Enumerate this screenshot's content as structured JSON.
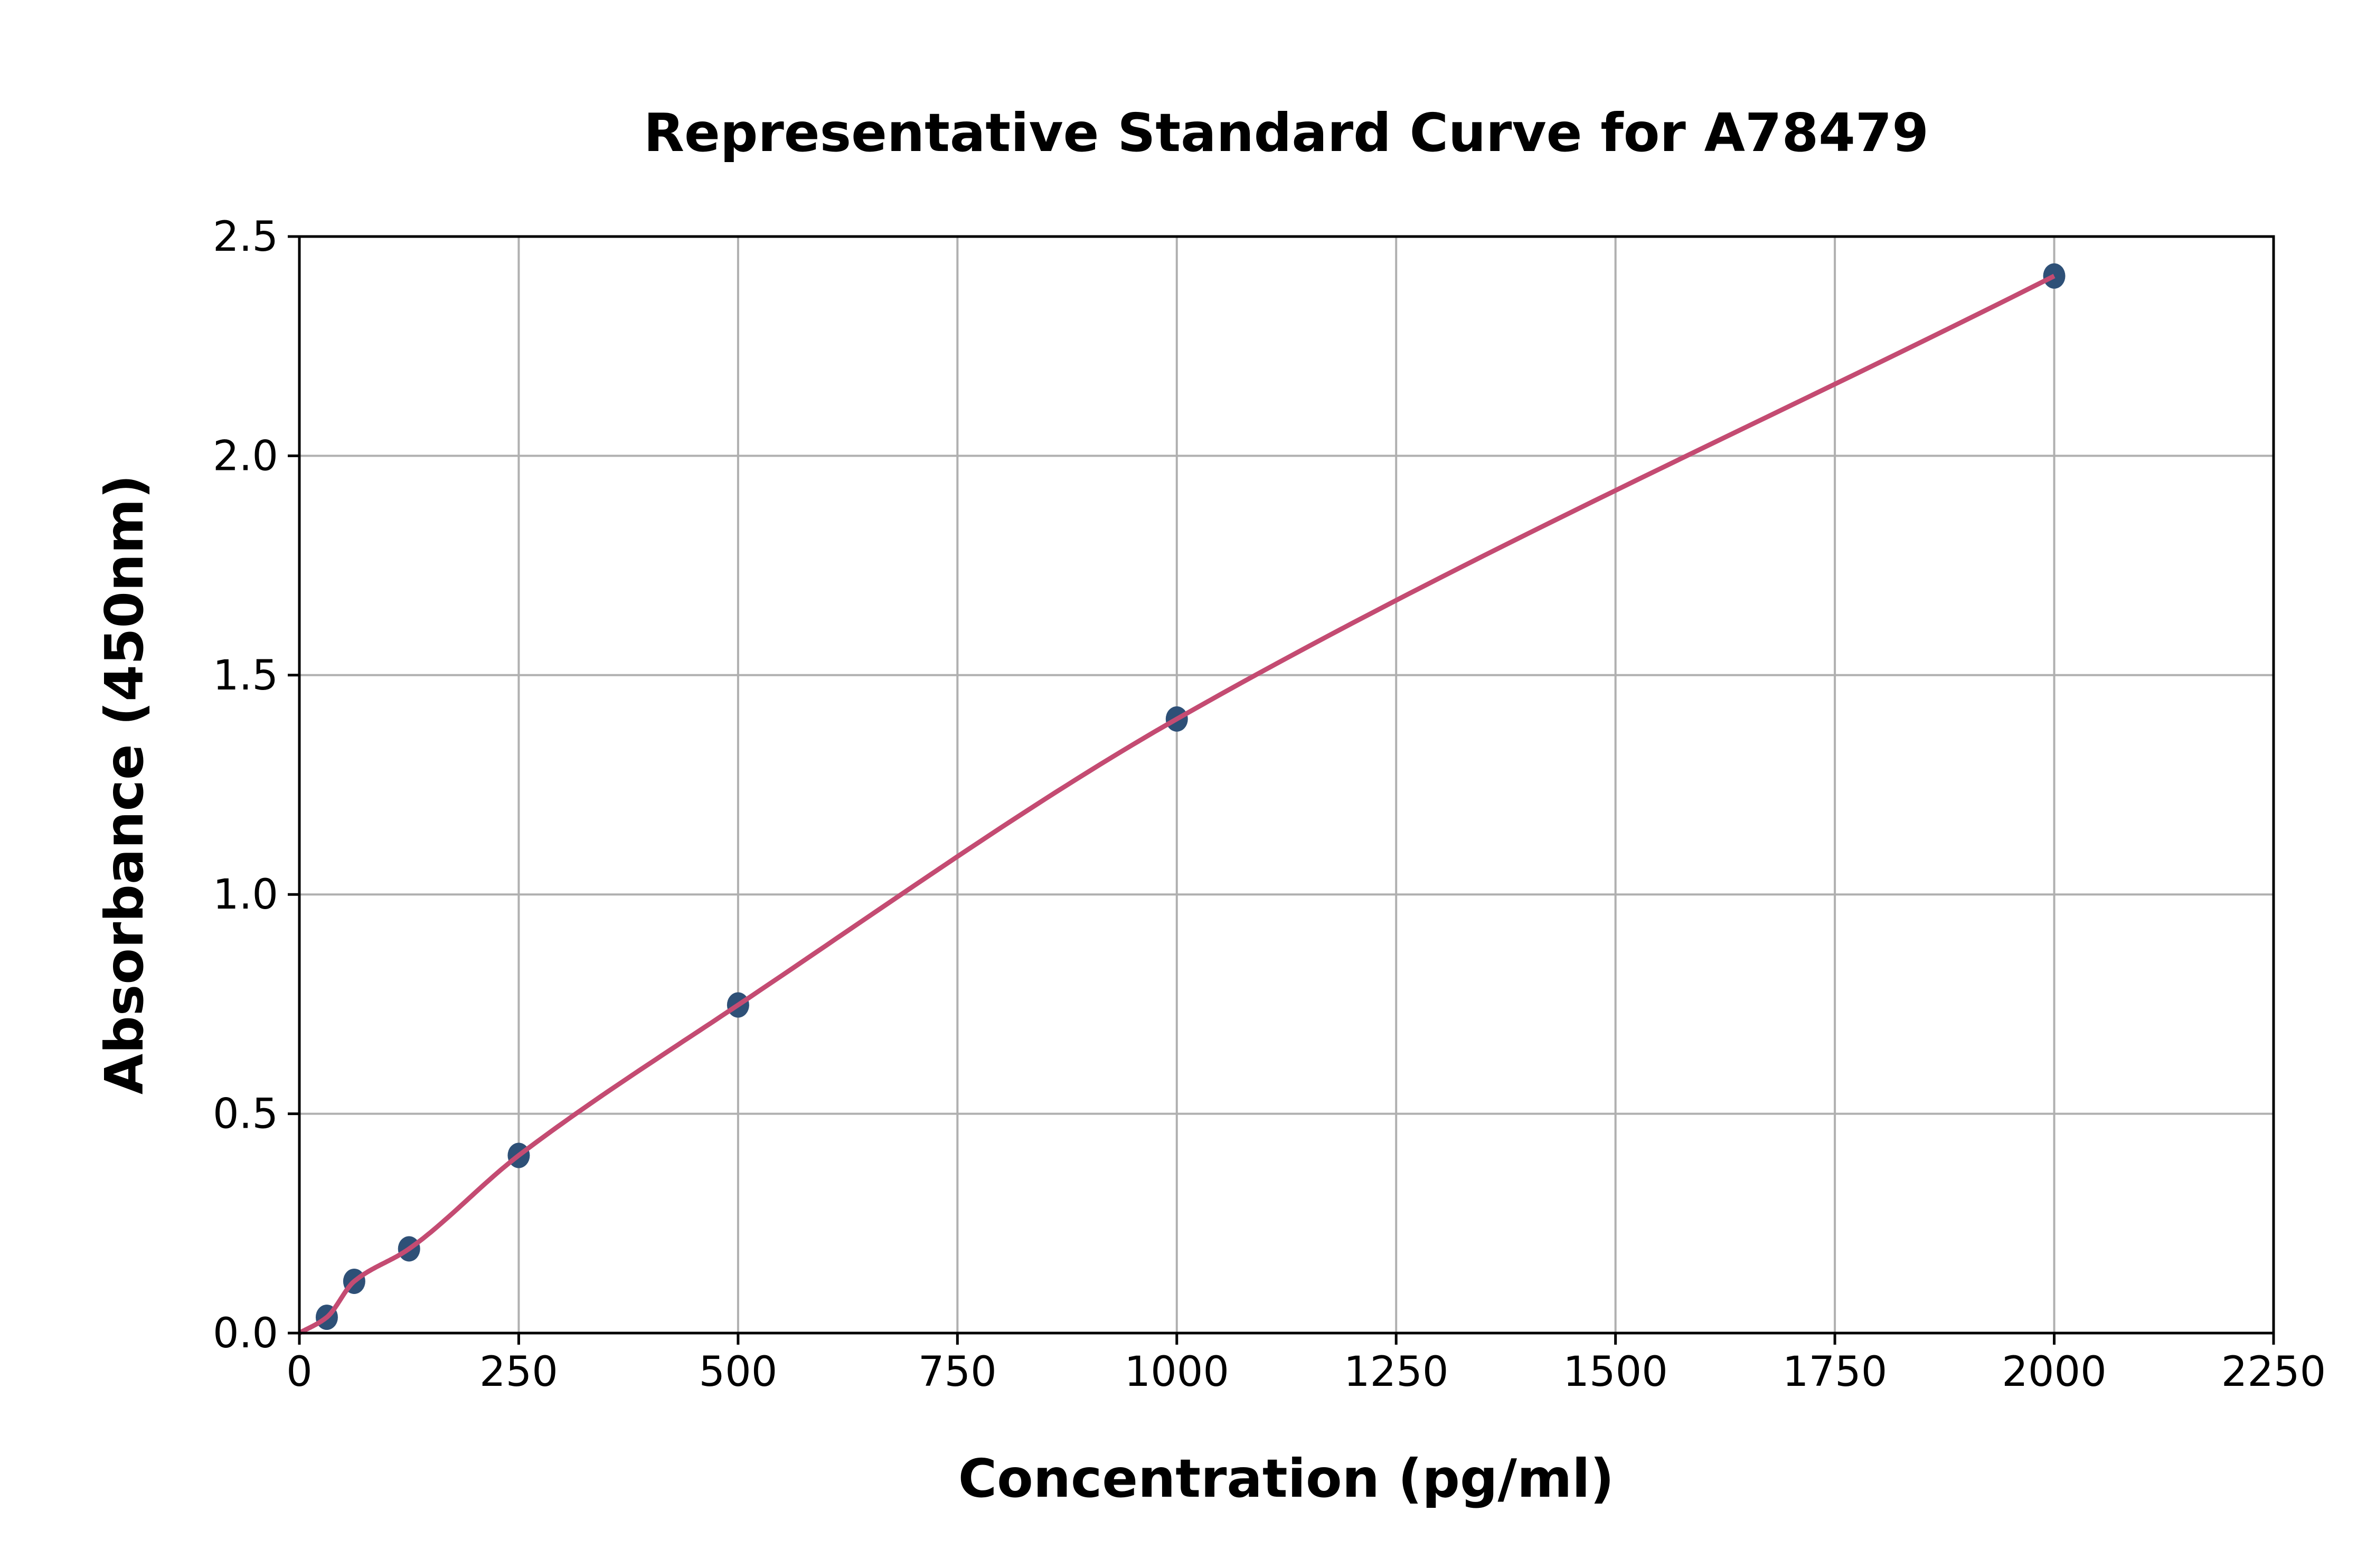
{
  "chart_data": {
    "type": "scatter",
    "title": "Representative Standard Curve for A78479",
    "xlabel": "Concentration (pg/ml)",
    "ylabel": "Absorbance (450nm)",
    "xlim": [
      0,
      2250
    ],
    "ylim": [
      0,
      2.5
    ],
    "xticks": [
      "0",
      "250",
      "500",
      "750",
      "1000",
      "1250",
      "1500",
      "1750",
      "2000",
      "2250"
    ],
    "yticks": [
      "0.0",
      "0.5",
      "1.0",
      "1.5",
      "2.0",
      "2.5"
    ],
    "grid": true,
    "points": {
      "x": [
        31.25,
        62.5,
        125,
        250,
        500,
        1000,
        2000
      ],
      "y": [
        0.036,
        0.118,
        0.192,
        0.405,
        0.748,
        1.4,
        2.41
      ]
    },
    "fit_curve": true,
    "colors": {
      "points": "#2e5077",
      "curve": "#c44b72",
      "grid": "#b0b0b0"
    }
  }
}
